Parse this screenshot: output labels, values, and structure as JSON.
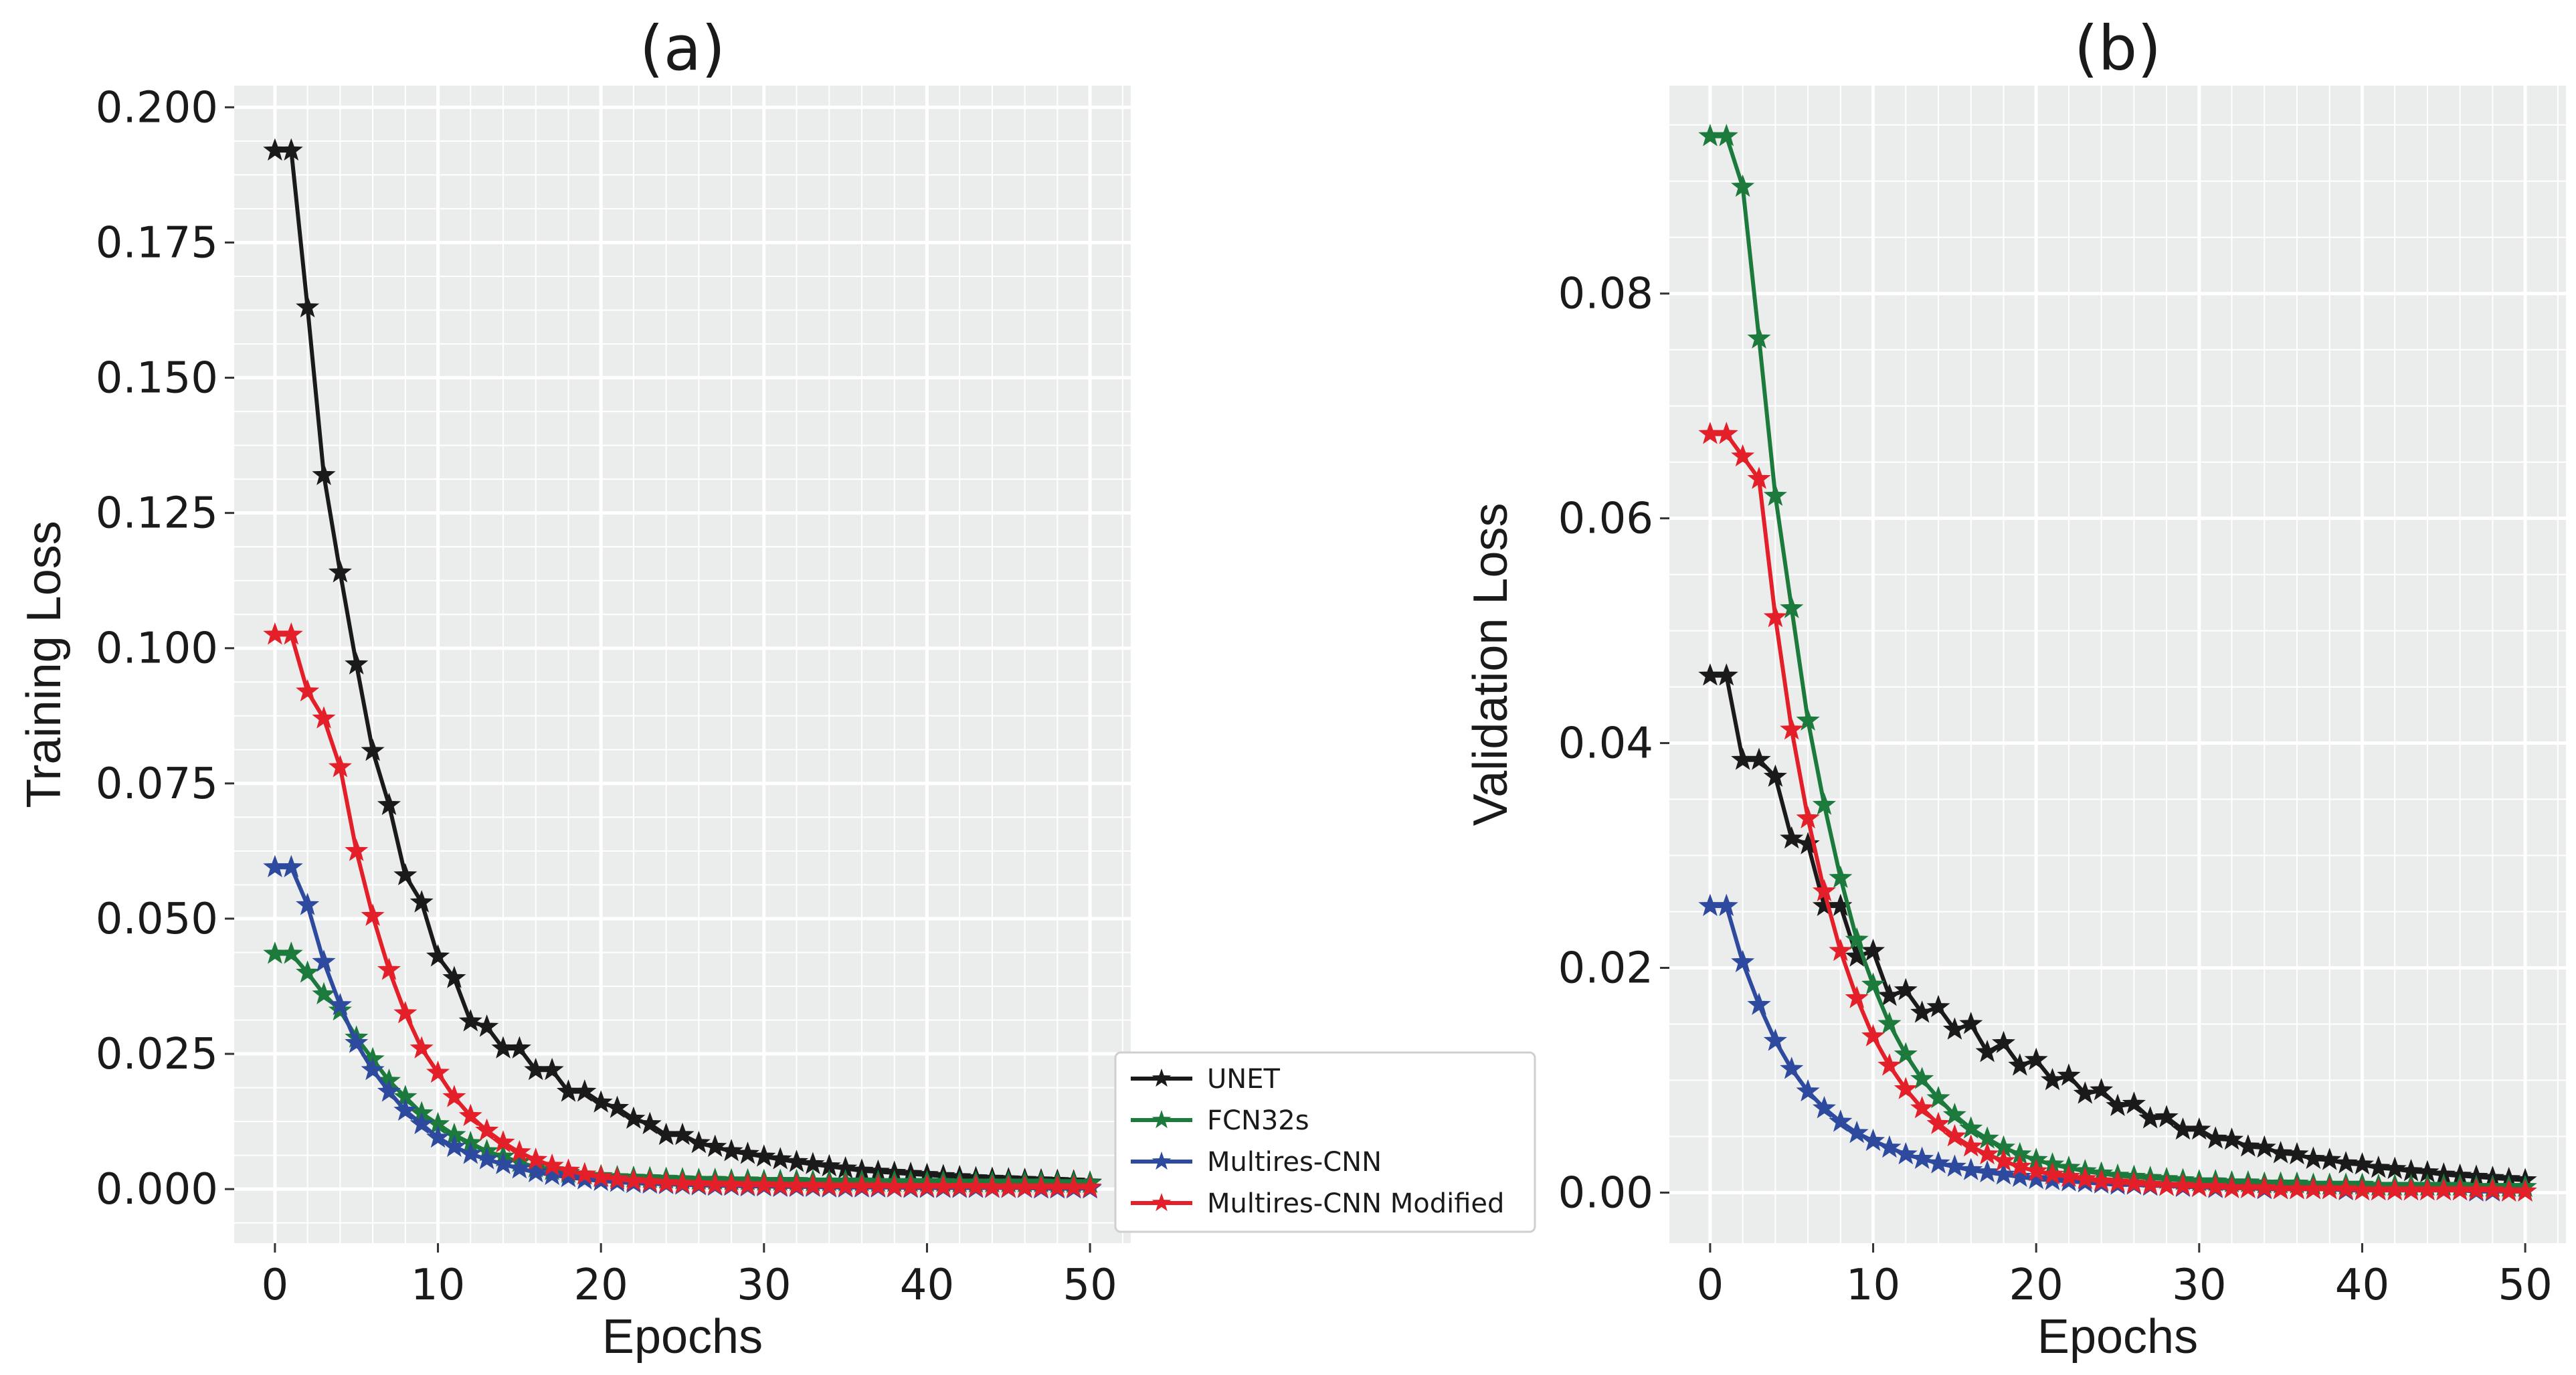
{
  "chart_data": [
    {
      "type": "line",
      "title": "(a)",
      "xlabel": "Epochs",
      "ylabel": "Training Loss",
      "xlim": [
        -2.5,
        52.5
      ],
      "ylim": [
        -0.01,
        0.204
      ],
      "grid": true,
      "xticks": [
        0,
        10,
        20,
        30,
        40,
        50
      ],
      "xtick_labels": [
        "0",
        "10",
        "20",
        "30",
        "40",
        "50"
      ],
      "yticks": [
        0.0,
        0.025,
        0.05,
        0.075,
        0.1,
        0.125,
        0.15,
        0.175,
        0.2
      ],
      "ytick_labels": [
        "0.000",
        "0.025",
        "0.050",
        "0.075",
        "0.100",
        "0.125",
        "0.150",
        "0.175",
        "0.200"
      ],
      "series": [
        {
          "name": "UNET",
          "color": "#1a1a1a",
          "values": [
            0.192,
            0.192,
            0.163,
            0.132,
            0.114,
            0.097,
            0.081,
            0.071,
            0.058,
            0.053,
            0.043,
            0.039,
            0.031,
            0.03,
            0.026,
            0.026,
            0.022,
            0.022,
            0.018,
            0.018,
            0.016,
            0.015,
            0.013,
            0.012,
            0.01,
            0.01,
            0.0085,
            0.0078,
            0.007,
            0.0065,
            0.006,
            0.0055,
            0.005,
            0.0046,
            0.0042,
            0.0038,
            0.0034,
            0.0032,
            0.003,
            0.0028,
            0.0026,
            0.0024,
            0.0022,
            0.002,
            0.0019,
            0.0018,
            0.0017,
            0.0016,
            0.0015,
            0.0014,
            0.0012
          ]
        },
        {
          "name": "FCN32s",
          "color": "#1b7a3c",
          "values": [
            0.0435,
            0.0435,
            0.04,
            0.036,
            0.033,
            0.028,
            0.024,
            0.02,
            0.017,
            0.014,
            0.012,
            0.01,
            0.0085,
            0.007,
            0.006,
            0.005,
            0.004,
            0.0035,
            0.003,
            0.0027,
            0.0024,
            0.0022,
            0.0021,
            0.002,
            0.0019,
            0.0018,
            0.0017,
            0.0017,
            0.0016,
            0.0016,
            0.0015,
            0.0015,
            0.0015,
            0.0014,
            0.0014,
            0.0014,
            0.0014,
            0.0013,
            0.0013,
            0.0013,
            0.0013,
            0.0013,
            0.0012,
            0.0012,
            0.0012,
            0.0012,
            0.0012,
            0.0012,
            0.0011,
            0.0011,
            0.0011
          ]
        },
        {
          "name": "Multires-CNN",
          "color": "#2e4a9e",
          "values": [
            0.0595,
            0.0595,
            0.0525,
            0.042,
            0.034,
            0.027,
            0.022,
            0.018,
            0.0145,
            0.012,
            0.0095,
            0.0078,
            0.0065,
            0.0055,
            0.0046,
            0.0038,
            0.0031,
            0.0026,
            0.0022,
            0.0018,
            0.0015,
            0.0013,
            0.0011,
            0.001,
            0.0009,
            0.0008,
            0.0007,
            0.0006,
            0.0006,
            0.0005,
            0.0005,
            0.0004,
            0.0004,
            0.0004,
            0.0003,
            0.0003,
            0.0003,
            0.0003,
            0.0003,
            0.0002,
            0.0002,
            0.0002,
            0.0002,
            0.0002,
            0.0002,
            0.0002,
            0.0002,
            0.0001,
            0.0001,
            0.0001,
            0.0001
          ]
        },
        {
          "name": "Multires-CNN Modified",
          "color": "#e3202a",
          "values": [
            0.1025,
            0.1025,
            0.092,
            0.087,
            0.078,
            0.0625,
            0.0505,
            0.0405,
            0.0325,
            0.026,
            0.0215,
            0.017,
            0.0135,
            0.0108,
            0.0086,
            0.0068,
            0.0054,
            0.0043,
            0.0034,
            0.0027,
            0.0022,
            0.0018,
            0.0015,
            0.0013,
            0.0011,
            0.001,
            0.0009,
            0.0008,
            0.0008,
            0.0007,
            0.0007,
            0.0006,
            0.0006,
            0.0006,
            0.0005,
            0.0005,
            0.0005,
            0.0005,
            0.0004,
            0.0004,
            0.0004,
            0.0004,
            0.0004,
            0.0004,
            0.0003,
            0.0003,
            0.0003,
            0.0003,
            0.0003,
            0.0003,
            0.0003
          ]
        }
      ]
    },
    {
      "type": "line",
      "title": "(b)",
      "xlabel": "Epochs",
      "ylabel": "Validation Loss",
      "xlim": [
        -2.5,
        52.5
      ],
      "ylim": [
        -0.0045,
        0.0985
      ],
      "grid": true,
      "xticks": [
        0,
        10,
        20,
        30,
        40,
        50
      ],
      "xtick_labels": [
        "0",
        "10",
        "20",
        "30",
        "40",
        "50"
      ],
      "yticks": [
        0.0,
        0.02,
        0.04,
        0.06,
        0.08
      ],
      "ytick_labels": [
        "0.00",
        "0.02",
        "0.04",
        "0.06",
        "0.08"
      ],
      "series": [
        {
          "name": "UNET",
          "color": "#1a1a1a",
          "values": [
            0.046,
            0.046,
            0.0385,
            0.0385,
            0.037,
            0.0315,
            0.031,
            0.0255,
            0.0255,
            0.021,
            0.0215,
            0.0175,
            0.018,
            0.016,
            0.0165,
            0.0145,
            0.015,
            0.0125,
            0.0133,
            0.0113,
            0.0118,
            0.01,
            0.0104,
            0.0088,
            0.0091,
            0.0077,
            0.0079,
            0.0066,
            0.0067,
            0.0056,
            0.0056,
            0.0048,
            0.0047,
            0.0041,
            0.004,
            0.0035,
            0.0034,
            0.003,
            0.0029,
            0.0026,
            0.0025,
            0.0022,
            0.0021,
            0.0019,
            0.0018,
            0.0016,
            0.0015,
            0.0014,
            0.0013,
            0.0012,
            0.0011
          ]
        },
        {
          "name": "FCN32s",
          "color": "#1b7a3c",
          "values": [
            0.094,
            0.094,
            0.0895,
            0.076,
            0.062,
            0.052,
            0.042,
            0.0345,
            0.028,
            0.0225,
            0.0185,
            0.015,
            0.0123,
            0.0101,
            0.0084,
            0.0069,
            0.0057,
            0.0048,
            0.004,
            0.0034,
            0.0029,
            0.0025,
            0.0022,
            0.0019,
            0.0017,
            0.0015,
            0.0014,
            0.0013,
            0.0012,
            0.0011,
            0.001,
            0.001,
            0.0009,
            0.0009,
            0.0008,
            0.0008,
            0.0008,
            0.0007,
            0.0007,
            0.0007,
            0.0007,
            0.0006,
            0.0006,
            0.0006,
            0.0006,
            0.0006,
            0.0006,
            0.0005,
            0.0005,
            0.0005,
            0.0005
          ]
        },
        {
          "name": "Multires-CNN",
          "color": "#2e4a9e",
          "values": [
            0.0255,
            0.0255,
            0.0205,
            0.0167,
            0.0135,
            0.011,
            0.009,
            0.0075,
            0.0063,
            0.0053,
            0.0046,
            0.004,
            0.0034,
            0.003,
            0.0026,
            0.0023,
            0.002,
            0.0018,
            0.0016,
            0.0014,
            0.0012,
            0.0011,
            0.001,
            0.0009,
            0.0008,
            0.0007,
            0.0007,
            0.0006,
            0.0006,
            0.0005,
            0.0005,
            0.0004,
            0.0004,
            0.0004,
            0.0003,
            0.0003,
            0.0003,
            0.0003,
            0.0003,
            0.0002,
            0.0002,
            0.0002,
            0.0002,
            0.0002,
            0.0002,
            0.0002,
            0.0002,
            0.0001,
            0.0001,
            0.0001,
            0.0001
          ]
        },
        {
          "name": "Multires-CNN Modified",
          "color": "#e3202a",
          "values": [
            0.0675,
            0.0675,
            0.0655,
            0.0635,
            0.0512,
            0.0412,
            0.0333,
            0.0268,
            0.0215,
            0.0173,
            0.0139,
            0.0113,
            0.0092,
            0.0075,
            0.0061,
            0.005,
            0.0041,
            0.0034,
            0.0028,
            0.0023,
            0.0019,
            0.0016,
            0.0014,
            0.0012,
            0.001,
            0.0009,
            0.0008,
            0.0007,
            0.0006,
            0.0006,
            0.0005,
            0.0005,
            0.0004,
            0.0004,
            0.0004,
            0.0003,
            0.0003,
            0.0003,
            0.0003,
            0.0003,
            0.0002,
            0.0002,
            0.0002,
            0.0002,
            0.0002,
            0.0002,
            0.0002,
            0.0002,
            0.0002,
            0.0001,
            0.0001
          ]
        }
      ]
    }
  ],
  "legend": {
    "placement": "between-panels-bottom",
    "entries": [
      "UNET",
      "FCN32s",
      "Multires-CNN",
      "Multires-CNN Modified"
    ]
  }
}
